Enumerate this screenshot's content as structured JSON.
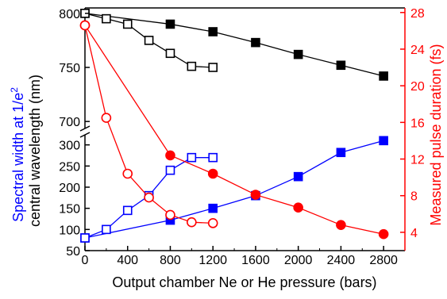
{
  "chart_data": {
    "type": "line",
    "xlabel": "Output chamber Ne or He pressure (bars)",
    "x_ticks": [
      0,
      400,
      800,
      1200,
      1600,
      2000,
      2400,
      2800
    ],
    "xlim": [
      0,
      3000
    ],
    "left_axis": {
      "label_part1": "Spectral width at 1/e",
      "label_sup": "2",
      "label_part2": "central wavelength (nm)",
      "upper_segment": {
        "range": [
          695,
          805
        ],
        "ticks": [
          700,
          750,
          800
        ]
      },
      "lower_segment": {
        "range": [
          50,
          320
        ],
        "ticks": [
          50,
          100,
          150,
          200,
          250,
          300
        ]
      },
      "broken": true
    },
    "right_axis": {
      "label": "Measured pulse duration (fs)",
      "range": [
        2,
        28.5
      ],
      "ticks": [
        4,
        8,
        12,
        16,
        20,
        24,
        28
      ],
      "color": "#ff0000"
    },
    "series": [
      {
        "axis": "left_upper",
        "marker": "square-filled",
        "color": "#000000",
        "x": [
          0,
          800,
          1200,
          1600,
          2000,
          2400,
          2800
        ],
        "y": [
          800,
          790,
          783,
          773,
          762,
          752,
          742
        ]
      },
      {
        "axis": "left_upper",
        "marker": "square-open",
        "color": "#000000",
        "x": [
          0,
          200,
          400,
          600,
          800,
          1000,
          1200
        ],
        "y": [
          800,
          795,
          790,
          775,
          763,
          751,
          750
        ]
      },
      {
        "axis": "left_lower",
        "marker": "square-filled",
        "color": "#0000ff",
        "x": [
          0,
          800,
          1200,
          1600,
          2000,
          2400,
          2800
        ],
        "y": [
          80,
          122,
          150,
          180,
          225,
          282,
          310
        ]
      },
      {
        "axis": "left_lower",
        "marker": "square-open",
        "color": "#0000ff",
        "x": [
          0,
          200,
          400,
          600,
          800,
          1000,
          1200
        ],
        "y": [
          80,
          100,
          145,
          180,
          240,
          270,
          270
        ]
      },
      {
        "axis": "right",
        "marker": "circle-filled",
        "color": "#ff0000",
        "x": [
          0,
          800,
          1200,
          1600,
          2000,
          2400,
          2800
        ],
        "y": [
          26.6,
          12.4,
          10.4,
          8.1,
          6.7,
          4.8,
          3.8
        ]
      },
      {
        "axis": "right",
        "marker": "circle-open",
        "color": "#ff0000",
        "x": [
          0,
          200,
          400,
          600,
          800,
          1000,
          1200
        ],
        "y": [
          26.6,
          16.5,
          10.4,
          7.8,
          5.9,
          5.1,
          5.0
        ]
      }
    ]
  }
}
